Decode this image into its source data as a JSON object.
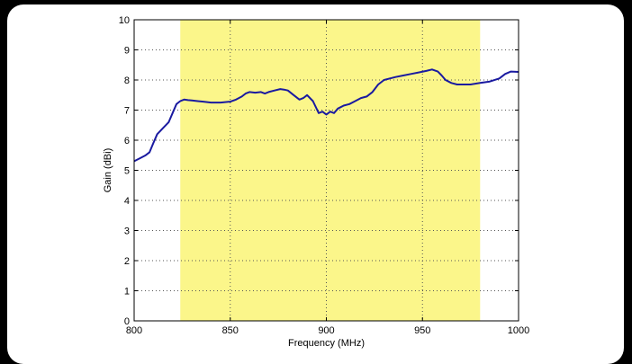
{
  "chart_data": {
    "type": "line",
    "title": "",
    "xlabel": "Frequency (MHz)",
    "ylabel": "Gain (dBi)",
    "xlim": [
      800,
      1000
    ],
    "ylim": [
      0,
      10
    ],
    "xticks": [
      800,
      850,
      900,
      950,
      1000
    ],
    "yticks": [
      0,
      1,
      2,
      3,
      4,
      5,
      6,
      7,
      8,
      9,
      10
    ],
    "grid": true,
    "highlight_band": {
      "x_start": 824,
      "x_end": 980,
      "color": "#fbf68a"
    },
    "series": [
      {
        "color": "#1a1aa0",
        "x": [
          800,
          803,
          806,
          808,
          810,
          812,
          815,
          818,
          820,
          822,
          824,
          826,
          828,
          830,
          833,
          836,
          840,
          845,
          850,
          853,
          856,
          858,
          860,
          863,
          866,
          868,
          870,
          873,
          876,
          878,
          880,
          883,
          886,
          888,
          890,
          893,
          896,
          898,
          900,
          902,
          904,
          906,
          909,
          912,
          915,
          918,
          921,
          924,
          927,
          930,
          933,
          936,
          940,
          944,
          948,
          952,
          955,
          958,
          960,
          962,
          965,
          968,
          971,
          975,
          980,
          985,
          990,
          993,
          996,
          1000
        ],
        "y": [
          5.3,
          5.4,
          5.5,
          5.6,
          5.9,
          6.2,
          6.4,
          6.6,
          6.9,
          7.2,
          7.3,
          7.35,
          7.33,
          7.32,
          7.3,
          7.28,
          7.25,
          7.25,
          7.28,
          7.35,
          7.45,
          7.55,
          7.6,
          7.58,
          7.6,
          7.55,
          7.6,
          7.65,
          7.7,
          7.68,
          7.65,
          7.5,
          7.35,
          7.4,
          7.5,
          7.3,
          6.9,
          6.95,
          6.85,
          6.95,
          6.9,
          7.05,
          7.15,
          7.2,
          7.3,
          7.4,
          7.45,
          7.6,
          7.85,
          8.0,
          8.05,
          8.1,
          8.15,
          8.2,
          8.25,
          8.3,
          8.35,
          8.28,
          8.15,
          8.0,
          7.9,
          7.85,
          7.85,
          7.85,
          7.9,
          7.95,
          8.05,
          8.2,
          8.28,
          8.27
        ]
      }
    ]
  }
}
